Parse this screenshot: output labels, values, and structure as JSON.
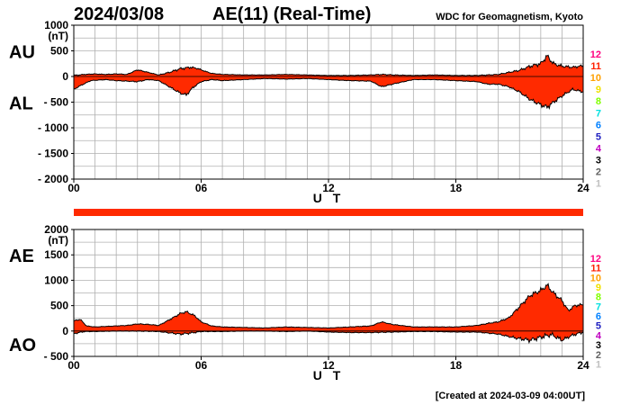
{
  "header": {
    "date": "2024/03/08",
    "title": "AE(11) (Real-Time)",
    "org": "WDC for Geomagnetism, Kyoto"
  },
  "footer": {
    "created": "[Created at 2024-03-09 04:00UT]"
  },
  "colors": {
    "fill": "#ff2a00",
    "grid": "#b0b0b0",
    "bar": "#ff2a00"
  },
  "station_count_scale": [
    {
      "label": "12",
      "color": "#ff0080"
    },
    {
      "label": "11",
      "color": "#ff2000"
    },
    {
      "label": "10",
      "color": "#ffa000"
    },
    {
      "label": "9",
      "color": "#f0e000"
    },
    {
      "label": "8",
      "color": "#80ff00"
    },
    {
      "label": "7",
      "color": "#00e0e0"
    },
    {
      "label": "6",
      "color": "#0080ff"
    },
    {
      "label": "5",
      "color": "#2020c0"
    },
    {
      "label": "4",
      "color": "#c000c0"
    },
    {
      "label": "3",
      "color": "#000000"
    },
    {
      "label": "2",
      "color": "#606060"
    },
    {
      "label": "1",
      "color": "#c0c0c0"
    }
  ],
  "chart_data": [
    {
      "type": "area",
      "panel": "AU/AL",
      "title": "AU / AL",
      "label_top": "AU",
      "label_bottom": "AL",
      "unit": "(nT)",
      "xlabel": "U T",
      "xlim": [
        0,
        24
      ],
      "ylim": [
        -2000,
        1000
      ],
      "xticks": [
        0,
        6,
        12,
        18,
        24
      ],
      "xtick_labels": [
        "00",
        "06",
        "12",
        "18",
        "24"
      ],
      "yticks": [
        1000,
        500,
        0,
        -500,
        -1000,
        -1500,
        -2000
      ],
      "ytick_labels": [
        "1000",
        "500",
        "0",
        "- 500",
        "- 1000",
        "- 1500",
        "- 2000"
      ],
      "grid": true,
      "series": [
        {
          "name": "AU",
          "x": [
            0,
            0.5,
            1,
            1.5,
            2,
            2.5,
            3,
            3.3,
            3.7,
            4,
            4.5,
            5,
            5.5,
            5.8,
            6.2,
            6.5,
            7,
            8,
            9,
            10,
            11,
            12,
            13,
            14,
            14.5,
            15,
            16,
            17,
            18,
            19,
            19.5,
            20,
            20.5,
            21,
            21.5,
            22,
            22.3,
            22.6,
            23,
            23.5,
            24
          ],
          "values": [
            20,
            40,
            50,
            40,
            50,
            40,
            130,
            100,
            60,
            30,
            80,
            150,
            180,
            160,
            100,
            60,
            40,
            30,
            30,
            40,
            30,
            20,
            20,
            30,
            40,
            30,
            20,
            30,
            20,
            20,
            30,
            40,
            80,
            120,
            200,
            250,
            400,
            250,
            200,
            180,
            210
          ]
        },
        {
          "name": "AL",
          "x": [
            0,
            0.3,
            0.8,
            1.5,
            2,
            3,
            3.5,
            4,
            4.5,
            5,
            5.3,
            5.6,
            6,
            6.5,
            7,
            8,
            9,
            10,
            11,
            12,
            13,
            14,
            14.5,
            15,
            16,
            17,
            18,
            19,
            19.5,
            20,
            20.5,
            21,
            21.5,
            22,
            22.3,
            22.6,
            23,
            23.5,
            24
          ],
          "values": [
            -250,
            -180,
            -80,
            -60,
            -80,
            -100,
            -60,
            -80,
            -200,
            -320,
            -360,
            -220,
            -100,
            -60,
            -80,
            -60,
            -40,
            -50,
            -40,
            -60,
            -80,
            -90,
            -200,
            -150,
            -60,
            -60,
            -80,
            -100,
            -150,
            -150,
            -200,
            -300,
            -450,
            -550,
            -600,
            -500,
            -380,
            -250,
            -300
          ]
        }
      ]
    },
    {
      "type": "area",
      "panel": "AE/AO",
      "title": "AE / AO",
      "label_top": "AE",
      "label_bottom": "AO",
      "unit": "(nT)",
      "xlabel": "U T",
      "xlim": [
        0,
        24
      ],
      "ylim": [
        -500,
        2000
      ],
      "xticks": [
        0,
        6,
        12,
        18,
        24
      ],
      "xtick_labels": [
        "00",
        "06",
        "12",
        "18",
        "24"
      ],
      "yticks": [
        2000,
        1500,
        1000,
        500,
        0,
        -500
      ],
      "ytick_labels": [
        "2000",
        "1500",
        "1000",
        "500",
        "0",
        "- 500"
      ],
      "grid": true,
      "series": [
        {
          "name": "AE",
          "x": [
            0,
            0.3,
            0.6,
            1,
            1.5,
            2,
            2.5,
            3,
            3.5,
            4,
            4.5,
            5,
            5.3,
            5.7,
            6,
            6.5,
            7,
            8,
            9,
            10,
            11,
            12,
            13,
            14,
            14.5,
            15,
            16,
            17,
            18,
            19,
            19.5,
            20,
            20.5,
            21,
            21.5,
            22,
            22.3,
            22.6,
            23,
            23.3,
            23.6,
            24
          ],
          "values": [
            200,
            230,
            100,
            80,
            90,
            100,
            110,
            140,
            130,
            110,
            220,
            340,
            380,
            300,
            180,
            100,
            80,
            70,
            60,
            80,
            70,
            60,
            80,
            100,
            180,
            130,
            80,
            80,
            80,
            110,
            150,
            180,
            260,
            480,
            700,
            800,
            900,
            750,
            600,
            400,
            500,
            520
          ]
        },
        {
          "name": "AO",
          "x": [
            0,
            0.5,
            1,
            2,
            3,
            4,
            5,
            5.5,
            6,
            7,
            8,
            9,
            10,
            11,
            12,
            13,
            14,
            15,
            16,
            17,
            18,
            19,
            19.5,
            20,
            20.5,
            21,
            21.5,
            22,
            22.5,
            23,
            23.5,
            24
          ],
          "values": [
            -50,
            -10,
            -10,
            0,
            0,
            -10,
            -60,
            -40,
            -10,
            -10,
            0,
            0,
            -10,
            0,
            -20,
            -30,
            -30,
            -20,
            -10,
            -10,
            -20,
            -20,
            -40,
            -60,
            -110,
            -150,
            -180,
            -120,
            -70,
            -180,
            -80,
            -20
          ]
        }
      ]
    }
  ]
}
